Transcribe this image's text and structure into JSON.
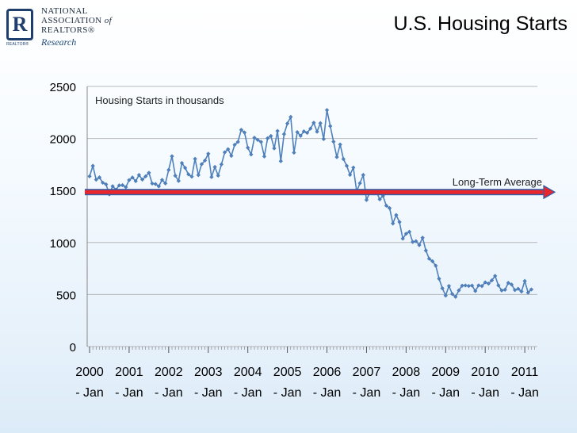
{
  "header": {
    "title": "U.S. Housing Starts",
    "logo": {
      "line1": "NATIONAL",
      "line2": "ASSOCIATION",
      "line2_suffix": "of",
      "line3": "REALTORS®",
      "research": "Research",
      "mark_letter": "R",
      "mark_caption": "REALTOR®"
    }
  },
  "colors": {
    "series": "#4f81bd",
    "average_line": "#e8262b",
    "average_edge": "#2e5ea9",
    "grid": "#b7b7b7"
  },
  "chart_data": {
    "type": "line",
    "title": "",
    "subtitle": "Housing Starts in thousands",
    "ylim": [
      0,
      2500
    ],
    "yticks": [
      0,
      500,
      1000,
      1500,
      2000,
      2500
    ],
    "xlabel": "",
    "ylabel": "",
    "grid": true,
    "x_start": "2000-01",
    "x_tick_labels": [
      {
        "year": "2000",
        "month": "- Jan"
      },
      {
        "year": "2001",
        "month": "- Jan"
      },
      {
        "year": "2002",
        "month": "- Jan"
      },
      {
        "year": "2003",
        "month": "- Jan"
      },
      {
        "year": "2004",
        "month": "- Jan"
      },
      {
        "year": "2005",
        "month": "- Jan"
      },
      {
        "year": "2006",
        "month": "- Jan"
      },
      {
        "year": "2007",
        "month": "- Jan"
      },
      {
        "year": "2008",
        "month": "- Jan"
      },
      {
        "year": "2009",
        "month": "- Jan"
      },
      {
        "year": "2010",
        "month": "- Jan"
      },
      {
        "year": "2011",
        "month": "- Jan"
      }
    ],
    "reference_line": {
      "label": "Long-Term Average",
      "value": 1500
    },
    "series": [
      {
        "values": [
          1636,
          1737,
          1604,
          1626,
          1575,
          1559,
          1463,
          1541,
          1507,
          1549,
          1551,
          1532,
          1600,
          1625,
          1590,
          1649,
          1605,
          1636,
          1670,
          1567,
          1562,
          1540,
          1602,
          1568,
          1698,
          1829,
          1642,
          1592,
          1764,
          1717,
          1655,
          1633,
          1804,
          1648,
          1753,
          1788,
          1853,
          1629,
          1726,
          1643,
          1751,
          1867,
          1897,
          1833,
          1939,
          1967,
          2083,
          2057,
          1911,
          1846,
          2007,
          1986,
          1967,
          1827,
          2002,
          2024,
          1905,
          2072,
          1782,
          2042,
          2144,
          2207,
          1864,
          2061,
          2025,
          2068,
          2054,
          2095,
          2151,
          2065,
          2147,
          1994,
          2273,
          2119,
          1969,
          1821,
          1942,
          1802,
          1737,
          1650,
          1720,
          1491,
          1570,
          1649,
          1409,
          1480,
          1495,
          1490,
          1415,
          1448,
          1354,
          1330,
          1183,
          1264,
          1197,
          1037,
          1084,
          1103,
          1005,
          1013,
          975,
          1046,
          923,
          844,
          820,
          777,
          652,
          560,
          490,
          582,
          505,
          478,
          540,
          585,
          587,
          582,
          586,
          534,
          588,
          581,
          617,
          605,
          636,
          679,
          588,
          539,
          546,
          612,
          596,
          543,
          555,
          529,
          630,
          518,
          549
        ]
      }
    ]
  }
}
